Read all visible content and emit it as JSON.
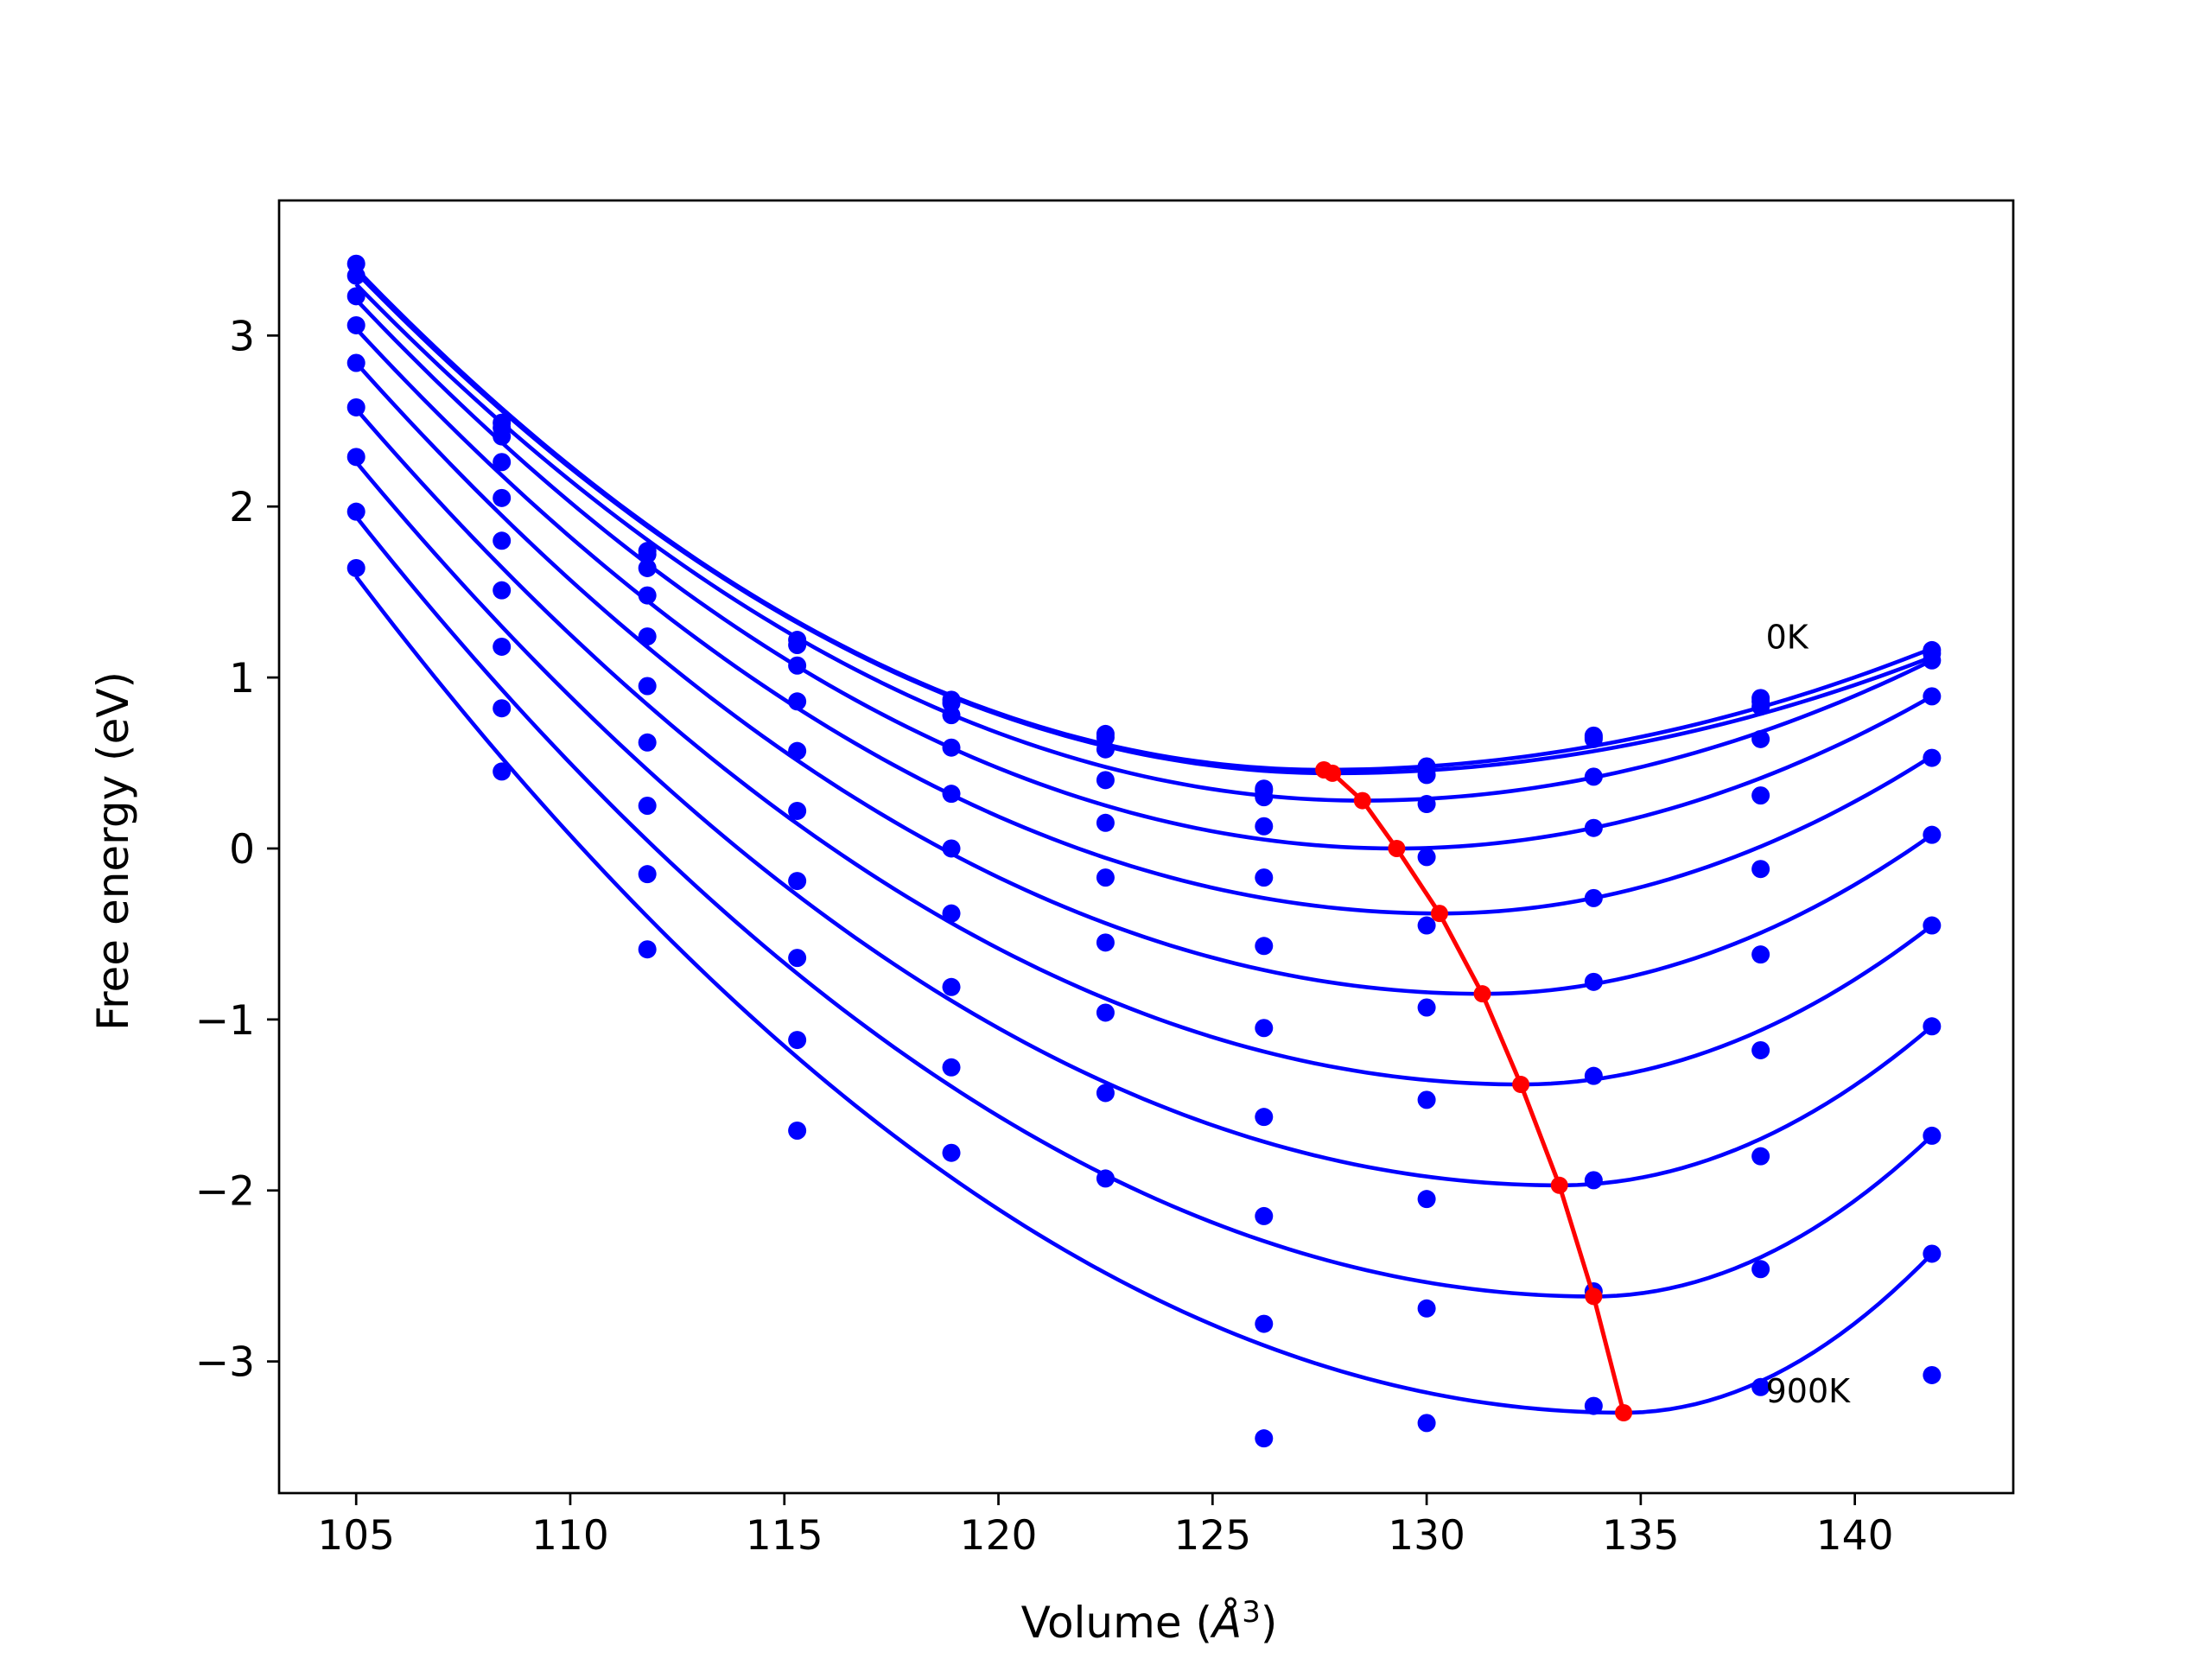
{
  "chart_data": {
    "type": "scatter",
    "title": "",
    "xlabel": "Volume (",
    "xlabel_unit": "Å",
    "xlabel_exp": "3",
    "xlabel_close": ")",
    "ylabel": "Free energy (eV)",
    "xlim": [
      103.2,
      143.7
    ],
    "ylim": [
      -3.77,
      3.79
    ],
    "x_ticks": [
      105,
      110,
      115,
      120,
      125,
      130,
      135,
      140
    ],
    "x_tick_labels": [
      "105",
      "110",
      "115",
      "120",
      "125",
      "130",
      "135",
      "140"
    ],
    "y_ticks": [
      3,
      2,
      1,
      0,
      -1,
      -2,
      -3
    ],
    "y_tick_labels": [
      "3",
      "2",
      "1",
      "0",
      "−1",
      "−2",
      "−3"
    ],
    "grid": false,
    "colors": {
      "fit": "#0000ff",
      "points": "#0000ff",
      "minima": "#ff0000"
    },
    "volumes": [
      105.0,
      108.4,
      111.8,
      115.3,
      118.9,
      122.5,
      126.2,
      130.0,
      133.9,
      137.8,
      141.8
    ],
    "series": [
      {
        "values": [
          3.42,
          2.49,
          1.74,
          1.22,
          0.87,
          0.67,
          0.35,
          0.48,
          0.66,
          0.88,
          1.16
        ],
        "fit": {
          "vmin": 127.6,
          "fmin": 0.46,
          "v_start": 105.0,
          "f_start": 3.39,
          "v_end": 141.8,
          "f_end": 1.17
        }
      },
      {
        "values": [
          3.35,
          2.46,
          1.72,
          1.19,
          0.85,
          0.65,
          0.34,
          0.46,
          0.64,
          0.86,
          1.14
        ],
        "fit": {
          "vmin": 127.8,
          "fmin": 0.44,
          "v_start": 105.0,
          "f_start": 3.37,
          "v_end": 141.8,
          "f_end": 1.12
        }
      },
      {
        "values": [
          3.23,
          2.41,
          1.64,
          1.07,
          0.78,
          0.58,
          0.3,
          0.43,
          0.65,
          0.83,
          1.1
        ],
        "fit": {
          "vmin": 128.5,
          "fmin": 0.28,
          "v_start": 105.0,
          "f_start": 3.3,
          "v_end": 141.8,
          "f_end": 1.1
        }
      },
      {
        "values": [
          3.06,
          2.26,
          1.48,
          0.86,
          0.59,
          0.4,
          0.13,
          0.26,
          0.42,
          0.64,
          0.89
        ],
        "fit": {
          "vmin": 129.3,
          "fmin": 0.0,
          "v_start": 105.0,
          "f_start": 3.21,
          "v_end": 141.8,
          "f_end": 0.89
        }
      },
      {
        "values": [
          2.84,
          2.05,
          1.24,
          0.57,
          0.32,
          0.15,
          -0.17,
          -0.05,
          0.12,
          0.31,
          0.53
        ],
        "fit": {
          "vmin": 130.3,
          "fmin": -0.38,
          "v_start": 105.0,
          "f_start": 3.04,
          "v_end": 141.8,
          "f_end": 0.54
        }
      },
      {
        "values": [
          2.58,
          1.8,
          0.95,
          0.22,
          0.0,
          -0.17,
          -0.57,
          -0.45,
          -0.29,
          -0.12,
          0.08
        ],
        "fit": {
          "vmin": 131.3,
          "fmin": -0.85,
          "v_start": 105.0,
          "f_start": 2.84,
          "v_end": 141.8,
          "f_end": 0.08
        }
      },
      {
        "values": [
          2.29,
          1.51,
          0.62,
          -0.19,
          -0.38,
          -0.55,
          -1.05,
          -0.93,
          -0.78,
          -0.62,
          -0.45
        ],
        "fit": {
          "vmin": 132.2,
          "fmin": -1.38,
          "v_start": 105.0,
          "f_start": 2.57,
          "v_end": 141.8,
          "f_end": -0.45
        }
      },
      {
        "values": [
          1.97,
          1.18,
          0.25,
          -0.64,
          -0.81,
          -0.96,
          -1.57,
          -1.47,
          -1.33,
          -1.18,
          -1.04
        ],
        "fit": {
          "vmin": 133.1,
          "fmin": -1.97,
          "v_start": 105.0,
          "f_start": 2.26,
          "v_end": 141.8,
          "f_end": -1.04
        }
      },
      {
        "values": [
          1.64,
          0.82,
          -0.15,
          -1.12,
          -1.28,
          -1.43,
          -2.15,
          -2.05,
          -1.94,
          -1.8,
          -1.68
        ],
        "fit": {
          "vmin": 133.9,
          "fmin": -2.62,
          "v_start": 105.0,
          "f_start": 1.94,
          "v_end": 141.8,
          "f_end": -1.68
        }
      },
      {
        "values": [
          null,
          0.45,
          -0.59,
          -1.65,
          -1.78,
          -1.93,
          -2.78,
          -2.69,
          -2.59,
          -2.46,
          -2.37
        ],
        "fit": {
          "vmin": 134.6,
          "fmin": -3.3,
          "v_start": 105.0,
          "f_start": 1.59,
          "v_end": 141.8,
          "f_end": -2.37
        }
      },
      {
        "values": [
          null,
          null,
          null,
          null,
          null,
          null,
          -3.45,
          -3.36,
          -3.26,
          -3.15,
          -3.08
        ],
        "fit": null
      }
    ],
    "minima_line": {
      "x": [
        127.6,
        127.8,
        128.5,
        129.3,
        130.3,
        131.3,
        132.2,
        133.1,
        133.9,
        134.6
      ],
      "y": [
        0.46,
        0.44,
        0.28,
        0.0,
        -0.38,
        -0.85,
        -1.38,
        -1.97,
        -2.62,
        -3.3
      ]
    },
    "annotations": [
      {
        "text": "0K",
        "x": 137.8,
        "y": 1.23
      },
      {
        "text": "900K",
        "x": 137.8,
        "y": -3.18
      }
    ]
  }
}
